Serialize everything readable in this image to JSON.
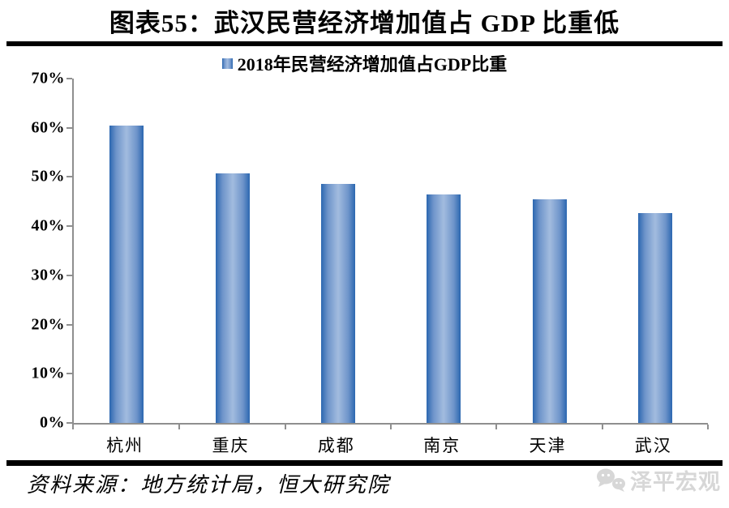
{
  "page": {
    "title": "图表55：武汉民营经济增加值占 GDP 比重低"
  },
  "chart_data": {
    "type": "bar",
    "title": "图表55：武汉民营经济增加值占 GDP 比重低",
    "legend": "2018年民营经济增加值占GDP比重",
    "legend_position": "top",
    "categories": [
      "杭州",
      "重庆",
      "成都",
      "南京",
      "天津",
      "武汉"
    ],
    "values": [
      60.5,
      50.8,
      48.6,
      46.4,
      45.4,
      42.7
    ],
    "unit": "%",
    "ylim": [
      0,
      70
    ],
    "ytick_step": 10,
    "ytick_labels": [
      "0%",
      "10%",
      "20%",
      "30%",
      "40%",
      "50%",
      "60%",
      "70%"
    ],
    "grid": "off",
    "bar_edge_color": "#2b67b0",
    "bar_center_color": "#a2bcdf",
    "axis_color": "#8f8f8f"
  },
  "footer": {
    "source": "资料来源：地方统计局，恒大研究院",
    "logo_text": "泽平宏观"
  }
}
